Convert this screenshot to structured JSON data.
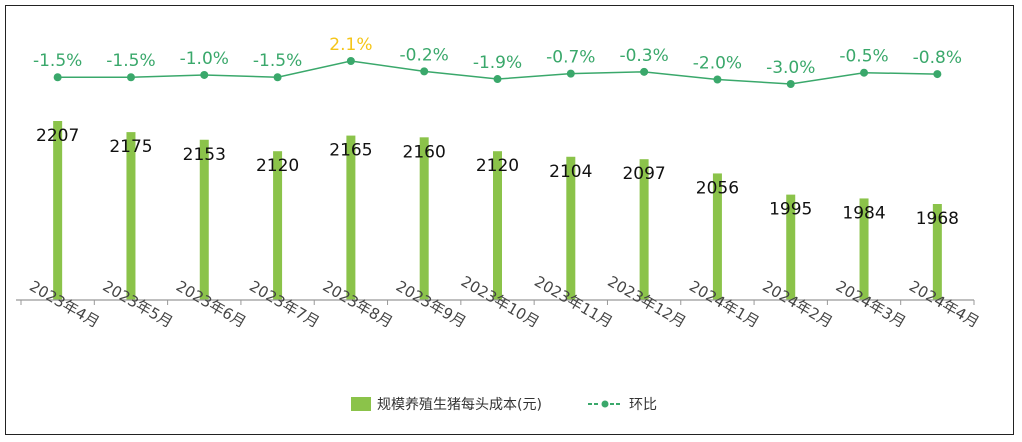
{
  "chart_data": {
    "type": "bar+line",
    "categories": [
      "2023年4月",
      "2023年5月",
      "2023年6月",
      "2023年7月",
      "2023年8月",
      "2023年9月",
      "2023年10月",
      "2023年11月",
      "2023年12月",
      "2024年1月",
      "2024年2月",
      "2024年3月",
      "2024年4月"
    ],
    "series": [
      {
        "name": "规模养殖生猪每头成本(元)",
        "type": "bar",
        "values": [
          2207,
          2175,
          2153,
          2120,
          2165,
          2160,
          2120,
          2104,
          2097,
          2056,
          1995,
          1984,
          1968
        ],
        "labels": [
          "2207",
          "2175",
          "2153",
          "2120",
          "2165",
          "2160",
          "2120",
          "2104",
          "2097",
          "2056",
          "1995",
          "1984",
          "1968"
        ],
        "color": "#8bc34a"
      },
      {
        "name": "环比",
        "type": "line",
        "values": [
          -1.5,
          -1.5,
          -1.0,
          -1.5,
          2.1,
          -0.2,
          -1.9,
          -0.7,
          -0.3,
          -2.0,
          -3.0,
          -0.5,
          -0.8
        ],
        "labels": [
          "-1.5%",
          "-1.5%",
          "-1.0%",
          "-1.5%",
          "2.1%",
          "-0.2%",
          "-1.9%",
          "-0.7%",
          "-0.3%",
          "-2.0%",
          "-3.0%",
          "-0.5%",
          "-0.8%"
        ],
        "color": "#3aa86b",
        "positive_color": "#f5c518"
      }
    ],
    "legend_position": "bottom",
    "grid": false
  }
}
